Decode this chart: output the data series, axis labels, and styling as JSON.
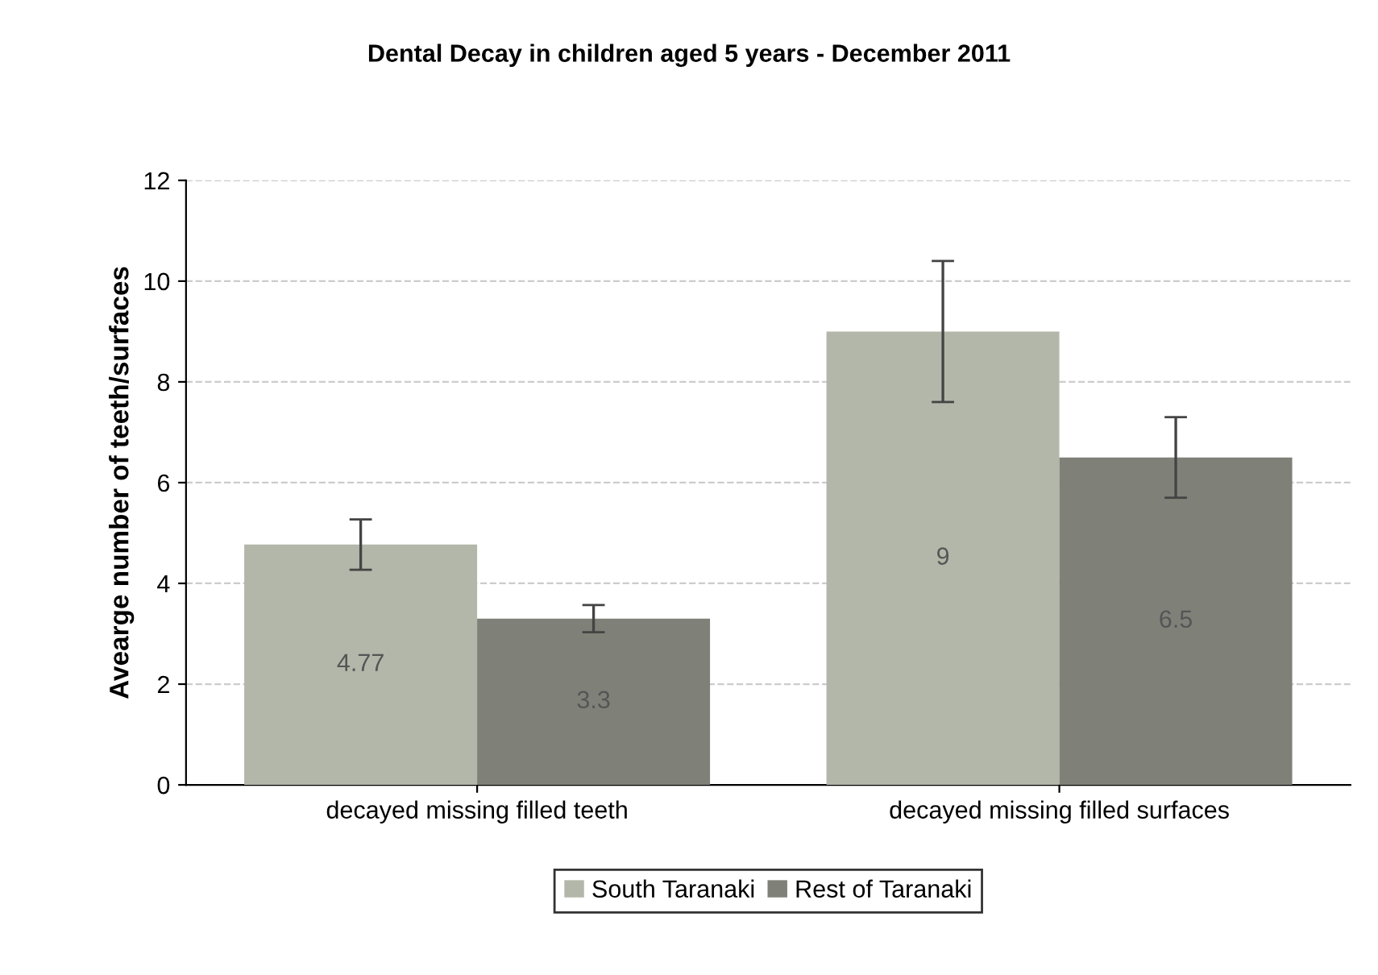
{
  "chart_data": {
    "type": "bar",
    "title": "Dental Decay in children aged 5 years - December 2011",
    "ylabel": "Avearge number of teeth/surfaces",
    "categories": [
      "decayed missing filled teeth",
      "decayed missing filled surfaces"
    ],
    "series": [
      {
        "name": "South Taranaki",
        "color": "#b3b7aa",
        "values": [
          4.77,
          9
        ],
        "errors": [
          0.5,
          1.4
        ]
      },
      {
        "name": "Rest of Taranaki",
        "color": "#7f8179",
        "values": [
          3.3,
          6.5
        ],
        "errors": [
          0.27,
          0.8
        ]
      }
    ],
    "ylim": [
      0,
      12
    ],
    "yticks": [
      0,
      2,
      4,
      6,
      8,
      10,
      12
    ],
    "grid": "y",
    "legend": "bottom",
    "data_labels": true
  }
}
